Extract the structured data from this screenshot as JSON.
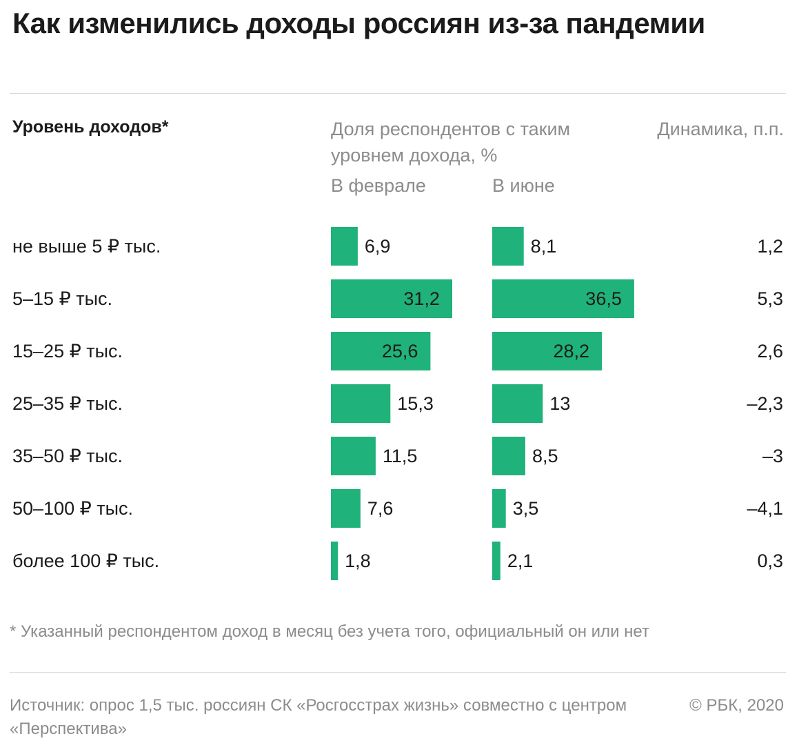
{
  "title": "Как изменились доходы россиян из-за пандемии",
  "headers": {
    "level": "Уровень доходов*",
    "share": "Доля респондентов с таким уровнем дохода, %",
    "dynamics": "Динамика, п.п."
  },
  "footnote": "* Указанный респондентом доход в месяц без учета того, официальный он или нет",
  "source": "Источник: опрос 1,5 тыс. россиян СК «Росгосстрах жизнь» совместно с центром «Перспектива»",
  "copyright": "© РБК, 2020",
  "chart_data": {
    "type": "bar",
    "orientation": "horizontal",
    "bar_color": "#1fb27a",
    "categories": [
      "не выше 5 ₽ тыс.",
      "5–15 ₽ тыс.",
      "15–25 ₽ тыс.",
      "25–35 ₽ тыс.",
      "35–50 ₽ тыс.",
      "50–100 ₽ тыс.",
      "более 100 ₽ тыс."
    ],
    "series": [
      {
        "name": "В феврале",
        "values": [
          6.9,
          31.2,
          25.6,
          15.3,
          11.5,
          7.6,
          1.8
        ],
        "labels": [
          "6,9",
          "31,2",
          "25,6",
          "15,3",
          "11,5",
          "7,6",
          "1,8"
        ]
      },
      {
        "name": "В июне",
        "values": [
          8.1,
          36.5,
          28.2,
          13,
          8.5,
          3.5,
          2.1
        ],
        "labels": [
          "8,1",
          "36,5",
          "28,2",
          "13",
          "8,5",
          "3,5",
          "2,1"
        ]
      }
    ],
    "dynamics": {
      "values": [
        1.2,
        5.3,
        2.6,
        -2.3,
        -3,
        -4.1,
        0.3
      ],
      "labels": [
        "1,2",
        "5,3",
        "2,6",
        "–2,3",
        "–3",
        "–4,1",
        "0,3"
      ]
    }
  }
}
